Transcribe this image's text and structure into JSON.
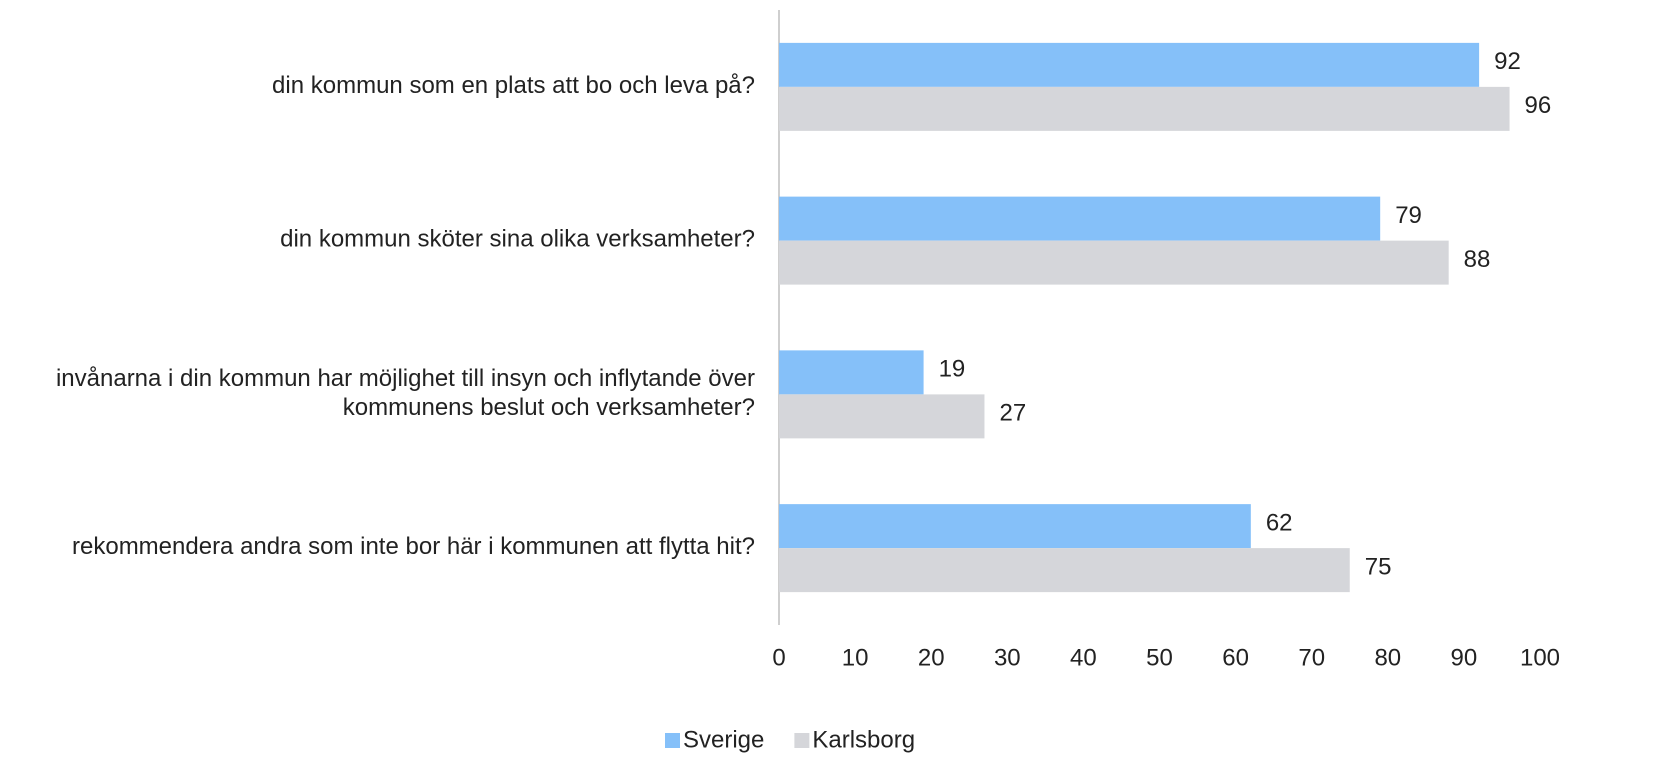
{
  "chart_data": {
    "type": "barh",
    "categories": [
      "din kommun som en plats att bo och leva på?",
      "din kommun sköter sina olika verksamheter?",
      "invånarna i din kommun har möjlighet till insyn och inflytande över kommunens beslut och verksamheter?",
      "rekommendera andra som inte bor här i kommunen att flytta hit?"
    ],
    "series": [
      {
        "name": "Sverige",
        "color": "#85c0f9",
        "values": [
          92,
          79,
          19,
          62
        ]
      },
      {
        "name": "Karlsborg",
        "color": "#d5d6da",
        "values": [
          96,
          88,
          27,
          75
        ]
      }
    ],
    "xlim": [
      0,
      100
    ],
    "xticks": [
      0,
      10,
      20,
      30,
      40,
      50,
      60,
      70,
      80,
      90,
      100
    ],
    "legend": "bottom"
  }
}
